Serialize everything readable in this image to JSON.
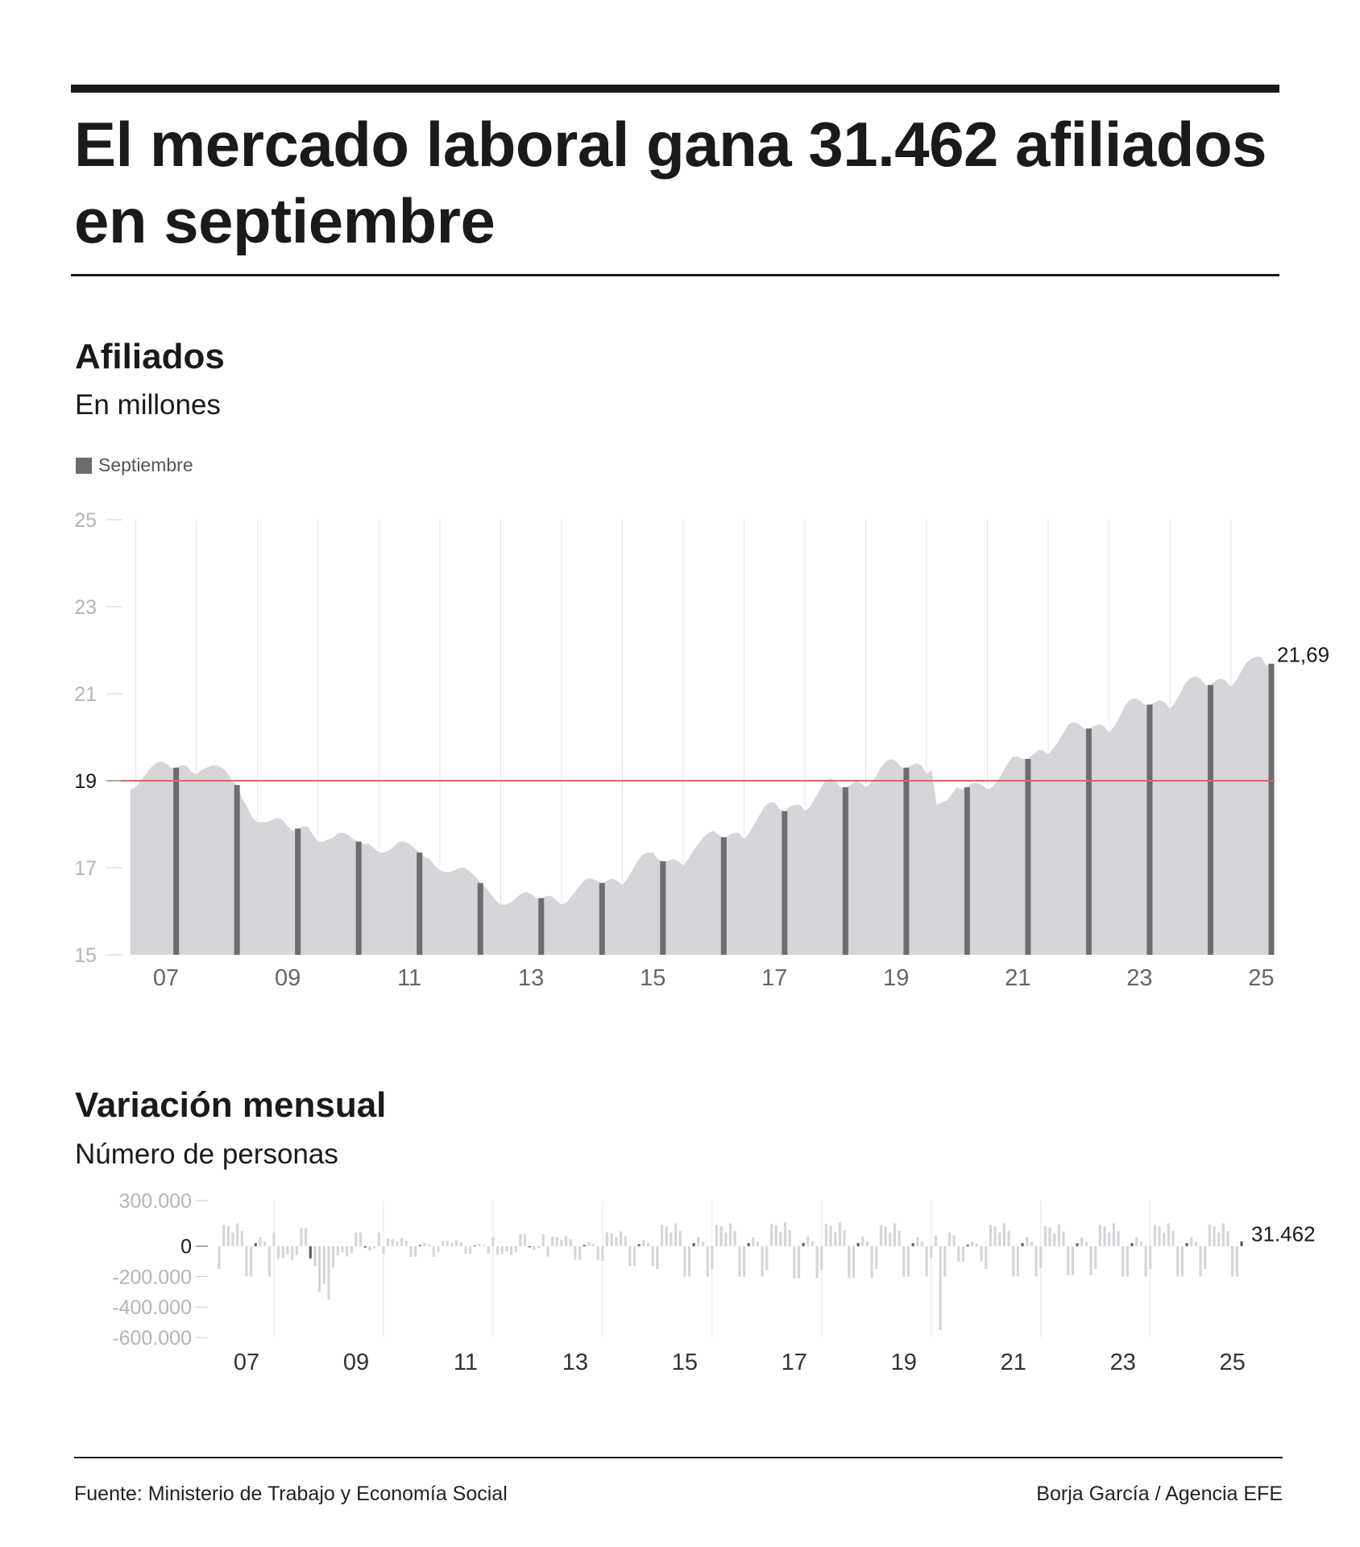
{
  "title": "El mercado laboral gana 31.462 afiliados en septiembre",
  "colors": {
    "area": "#d5d6da",
    "september_bar": "#6d6c70",
    "reference_line": "#e8625d",
    "gridline": "#e6e6e6",
    "axis_tick_text": "#b5b5b5",
    "monthly_bar": "#d5d6da",
    "monthly_sept_bar": "#5f5e62"
  },
  "section1": {
    "title": "Afiliados",
    "subtitle": "En millones",
    "legend_label": "Septiembre",
    "end_label": "21,69"
  },
  "section2": {
    "title": "Variación mensual",
    "subtitle": "Número de personas",
    "end_label": "31.462"
  },
  "footer": {
    "source": "Fuente: Ministerio de Trabajo y Economía Social",
    "credit": "Borja García / Agencia EFE"
  },
  "chart_data": [
    {
      "type": "area",
      "title": "Afiliados",
      "ylabel": "En millones",
      "ylim": [
        15,
        25
      ],
      "yticks": [
        15,
        17,
        19,
        21,
        23,
        25
      ],
      "ytick_labels": [
        "15",
        "17",
        "19",
        "21",
        "23",
        "25"
      ],
      "highlight_ytick": 19,
      "reference_line": 19,
      "x_start_year": 2006,
      "x_start_month": 12,
      "x_tick_years": [
        2007,
        2009,
        2011,
        2013,
        2015,
        2017,
        2019,
        2021,
        2023,
        2025
      ],
      "x_tick_labels": [
        "07",
        "09",
        "11",
        "13",
        "15",
        "17",
        "19",
        "21",
        "23",
        "25"
      ],
      "annual_anchors": [
        {
          "year": 2007,
          "values": [
            18.85,
            19.0,
            19.15,
            19.3,
            19.4,
            19.45,
            19.4,
            19.3,
            19.3,
            19.35,
            19.35,
            19.2
          ]
        },
        {
          "year": 2008,
          "values": [
            19.15,
            19.25,
            19.3,
            19.35,
            19.35,
            19.3,
            19.2,
            19.0,
            18.9,
            18.6,
            18.4,
            18.15
          ]
        },
        {
          "year": 2009,
          "values": [
            18.05,
            18.05,
            18.05,
            18.1,
            18.15,
            18.1,
            17.95,
            17.85,
            17.9,
            17.95,
            17.95,
            17.75
          ]
        },
        {
          "year": 2010,
          "values": [
            17.6,
            17.6,
            17.65,
            17.7,
            17.8,
            17.8,
            17.75,
            17.65,
            17.6,
            17.55,
            17.55,
            17.45
          ]
        },
        {
          "year": 2011,
          "values": [
            17.35,
            17.35,
            17.4,
            17.5,
            17.6,
            17.6,
            17.55,
            17.45,
            17.35,
            17.25,
            17.2,
            17.05
          ]
        },
        {
          "year": 2012,
          "values": [
            16.95,
            16.9,
            16.9,
            16.95,
            17.0,
            17.0,
            16.9,
            16.8,
            16.65,
            16.55,
            16.4,
            16.25
          ]
        },
        {
          "year": 2013,
          "values": [
            16.15,
            16.15,
            16.2,
            16.3,
            16.4,
            16.45,
            16.4,
            16.3,
            16.3,
            16.35,
            16.35,
            16.25
          ]
        },
        {
          "year": 2014,
          "values": [
            16.15,
            16.2,
            16.35,
            16.5,
            16.65,
            16.75,
            16.75,
            16.7,
            16.65,
            16.7,
            16.75,
            16.7
          ]
        },
        {
          "year": 2015,
          "values": [
            16.6,
            16.75,
            16.95,
            17.15,
            17.3,
            17.35,
            17.35,
            17.2,
            17.15,
            17.15,
            17.2,
            17.15
          ]
        },
        {
          "year": 2016,
          "values": [
            17.05,
            17.2,
            17.4,
            17.55,
            17.7,
            17.8,
            17.85,
            17.75,
            17.7,
            17.75,
            17.8,
            17.8
          ]
        },
        {
          "year": 2017,
          "values": [
            17.65,
            17.8,
            18.0,
            18.2,
            18.4,
            18.5,
            18.5,
            18.35,
            18.3,
            18.4,
            18.45,
            18.45
          ]
        },
        {
          "year": 2018,
          "values": [
            18.3,
            18.4,
            18.6,
            18.8,
            19.0,
            19.05,
            19.0,
            18.85,
            18.85,
            18.9,
            19.0,
            18.95
          ]
        },
        {
          "year": 2019,
          "values": [
            18.85,
            18.95,
            19.1,
            19.3,
            19.45,
            19.5,
            19.45,
            19.3,
            19.3,
            19.35,
            19.4,
            19.35
          ]
        },
        {
          "year": 2020,
          "values": [
            19.15,
            19.25,
            18.45,
            18.5,
            18.55,
            18.7,
            18.85,
            18.8,
            18.85,
            18.95,
            18.95,
            18.9
          ]
        },
        {
          "year": 2021,
          "values": [
            18.8,
            18.85,
            19.0,
            19.2,
            19.4,
            19.55,
            19.55,
            19.5,
            19.5,
            19.6,
            19.7,
            19.7
          ]
        },
        {
          "year": 2022,
          "values": [
            19.6,
            19.75,
            19.9,
            20.1,
            20.3,
            20.35,
            20.3,
            20.2,
            20.2,
            20.25,
            20.3,
            20.25
          ]
        },
        {
          "year": 2023,
          "values": [
            20.1,
            20.25,
            20.45,
            20.7,
            20.85,
            20.9,
            20.85,
            20.75,
            20.75,
            20.8,
            20.85,
            20.8
          ]
        },
        {
          "year": 2024,
          "values": [
            20.65,
            20.8,
            21.0,
            21.25,
            21.35,
            21.4,
            21.35,
            21.2,
            21.2,
            21.3,
            21.35,
            21.3
          ]
        },
        {
          "year": 2025,
          "values": [
            21.15,
            21.3,
            21.5,
            21.7,
            21.8,
            21.85,
            21.85,
            21.65,
            21.69
          ]
        }
      ],
      "first_point": 18.8,
      "highlight_month": 9,
      "highlight_series_name": "Septiembre",
      "last_value": 21.69
    },
    {
      "type": "bar",
      "title": "Variación mensual",
      "ylabel": "Número de personas",
      "ylim": [
        -600000,
        300000
      ],
      "yticks": [
        300000,
        0,
        -200000,
        -400000,
        -600000
      ],
      "ytick_labels": [
        "300.000",
        "0",
        "-200.000",
        "-400.000",
        "-600.000"
      ],
      "x_start_year": 2007,
      "x_start_month": 1,
      "x_tick_years": [
        2007,
        2009,
        2011,
        2013,
        2015,
        2017,
        2019,
        2021,
        2023,
        2025
      ],
      "x_tick_labels": [
        "07",
        "09",
        "11",
        "13",
        "15",
        "17",
        "19",
        "21",
        "23",
        "25"
      ],
      "monthly_pattern": [
        -150000,
        140000,
        130000,
        90000,
        150000,
        100000,
        -200000,
        -200000,
        20000,
        60000,
        30000,
        -200000
      ],
      "year_factors": {
        "2007": 1.0,
        "2008": -0.6,
        "2009": -0.45,
        "2010": 0.35,
        "2011": 0.25,
        "2012": -0.4,
        "2013": 0.45,
        "2014": 0.65,
        "2015": 1.0,
        "2016": 1.0,
        "2017": 1.05,
        "2018": 1.05,
        "2019": 1.0,
        "2020": 0.5,
        "2021": 1.0,
        "2022": 0.95,
        "2023": 1.0,
        "2024": 1.0,
        "2025": 1.0
      },
      "special_values": {
        "2008-9": -80000,
        "2008-10": -130000,
        "2008-11": -300000,
        "2008-12": -250000,
        "2009-1": -350000,
        "2009-2": -140000,
        "2009-3": -60000,
        "2020-3": -550000,
        "2020-4": -200000,
        "2020-5": 90000,
        "2020-6": 70000,
        "2025-9": 31462
      },
      "september_values_highlighted": true,
      "last_value": 31462
    }
  ]
}
